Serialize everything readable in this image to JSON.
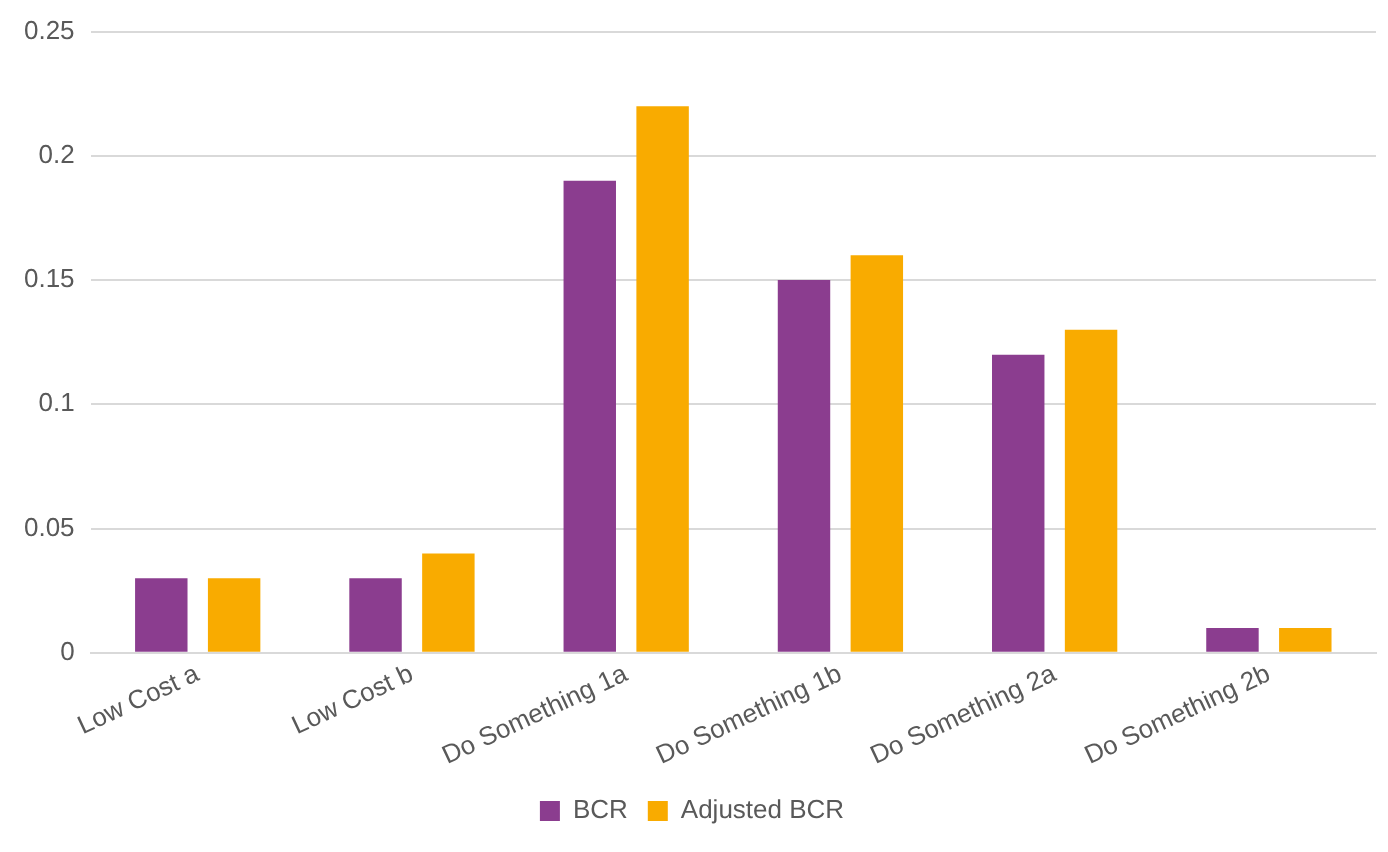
{
  "chart_data": {
    "type": "bar",
    "categories": [
      "Low Cost a",
      "Low Cost b",
      "Do Something 1a",
      "Do Something 1b",
      "Do Something 2a",
      "Do Something 2b"
    ],
    "series": [
      {
        "name": "BCR",
        "color": "#8b3d8f",
        "values": [
          0.03,
          0.03,
          0.19,
          0.15,
          0.12,
          0.01
        ]
      },
      {
        "name": "Adjusted BCR",
        "color": "#f9ab00",
        "values": [
          0.03,
          0.04,
          0.22,
          0.16,
          0.13,
          0.01
        ]
      }
    ],
    "ylim": [
      0,
      0.25
    ],
    "yticks": [
      0,
      0.05,
      0.1,
      0.15,
      0.2,
      0.25
    ],
    "grid": "y",
    "legend": "bottom"
  }
}
